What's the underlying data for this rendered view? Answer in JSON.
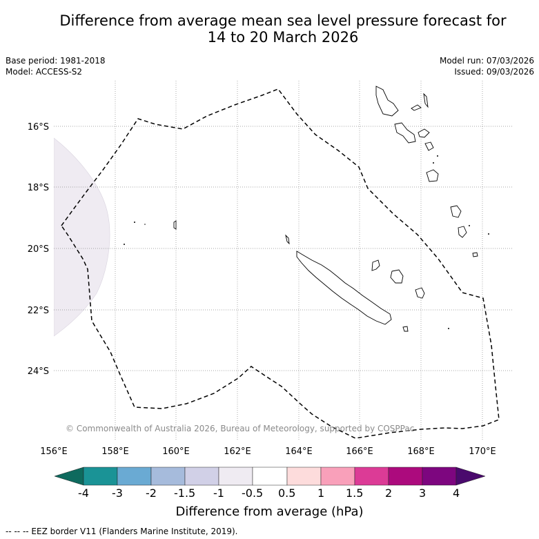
{
  "title": {
    "line1": "Difference from average mean sea level pressure forecast for",
    "line2": "14 to 20 March 2026"
  },
  "meta": {
    "base_period": "Base period: 1981-2018",
    "model": "Model: ACCESS-S2",
    "model_run": "Model run: 07/03/2026",
    "issued": "Issued: 09/03/2026"
  },
  "map": {
    "lat_labels": [
      "16°S",
      "18°S",
      "20°S",
      "22°S",
      "24°S"
    ],
    "lon_labels": [
      "156°E",
      "158°E",
      "160°E",
      "162°E",
      "164°E",
      "166°E",
      "168°E",
      "170°E"
    ],
    "anomaly_fill": "#efebf2",
    "copyright": "© Commonwealth of Australia 2026, Bureau of Meteorology, supported by COSPPac"
  },
  "colorbar": {
    "title": "Difference from average (hPa)",
    "tick_labels": [
      "-4",
      "-3",
      "-2",
      "-1.5",
      "-1",
      "-0.5",
      "0.5",
      "1",
      "1.5",
      "2",
      "3",
      "4"
    ],
    "colors": [
      "#0e6a5e",
      "#1a9396",
      "#6aaad3",
      "#a6bbdc",
      "#d1d0e7",
      "#efebf2",
      "#ffffff",
      "#fddcdc",
      "#f9a0ba",
      "#dc3b96",
      "#ac0a7d",
      "#7d067f",
      "#4a0a6d"
    ]
  },
  "footnote": "--  --  -- EEZ border V11 (Flanders Marine Institute, 2019)."
}
